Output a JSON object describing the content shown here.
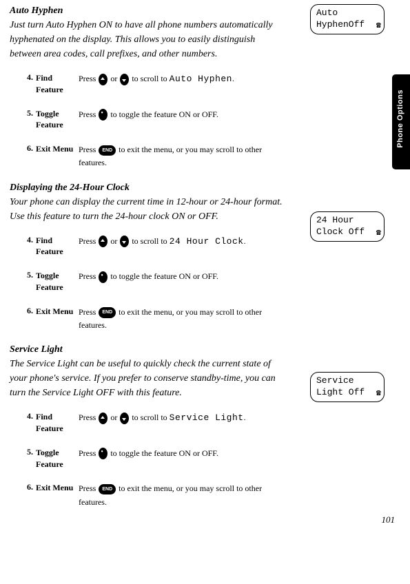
{
  "sections": [
    {
      "title": "Auto Hyphen",
      "intro": "Just turn Auto Hyphen ON to have all phone numbers automatically hyphenated on the display. This allows you to easily distinguish between area codes, call prefixes, and other numbers.",
      "display": {
        "line1": "Auto",
        "line2": "HyphenOff"
      },
      "steps": [
        {
          "num": "4.",
          "label": "Find Feature",
          "pre": "Press ",
          "mid": " or ",
          "post": " to scroll to ",
          "lcd": "Auto Hyphen",
          "end": "."
        },
        {
          "num": "5.",
          "label": "Toggle Feature",
          "pre": "Press ",
          "post": " to toggle the feature ON or OFF."
        },
        {
          "num": "6.",
          "label": "Exit Menu",
          "pre": "Press ",
          "post": " to exit the menu, or you may scroll to other features."
        }
      ]
    },
    {
      "title": "Displaying the 24-Hour Clock",
      "intro": "Your phone can display the current time in 12-hour or 24-hour format. Use this feature to turn the 24-hour clock ON or OFF.",
      "display": {
        "line1": "24 Hour",
        "line2": "Clock Off"
      },
      "steps": [
        {
          "num": "4.",
          "label": "Find Feature",
          "pre": "Press ",
          "mid": " or ",
          "post": " to scroll to ",
          "lcd": "24 Hour Clock",
          "end": "."
        },
        {
          "num": "5.",
          "label": "Toggle Feature",
          "pre": "Press ",
          "post": " to toggle the feature ON or OFF."
        },
        {
          "num": "6.",
          "label": "Exit Menu",
          "pre": "Press ",
          "post": " to exit the menu, or you may scroll to other features."
        }
      ]
    },
    {
      "title": "Service Light",
      "intro": "The Service Light can be useful to quickly check the current state of your phone's service. If you prefer to conserve standby-time, you can turn the Service Light OFF with this feature.",
      "display": {
        "line1": "Service",
        "line2": "Light Off"
      },
      "steps": [
        {
          "num": "4.",
          "label": "Find Feature",
          "pre": "Press ",
          "mid": " or ",
          "post": " to scroll to ",
          "lcd": "Service Light",
          "end": "."
        },
        {
          "num": "5.",
          "label": "Toggle Feature",
          "pre": "Press ",
          "post": " to toggle the feature ON or OFF."
        },
        {
          "num": "6.",
          "label": "Exit Menu",
          "pre": "Press ",
          "post": " to exit the menu, or you may scroll to other features."
        }
      ]
    }
  ],
  "sideTab": "Phone Options",
  "pageNum": "101",
  "endKey": "END",
  "displayPositions": [
    6,
    307,
    540
  ]
}
